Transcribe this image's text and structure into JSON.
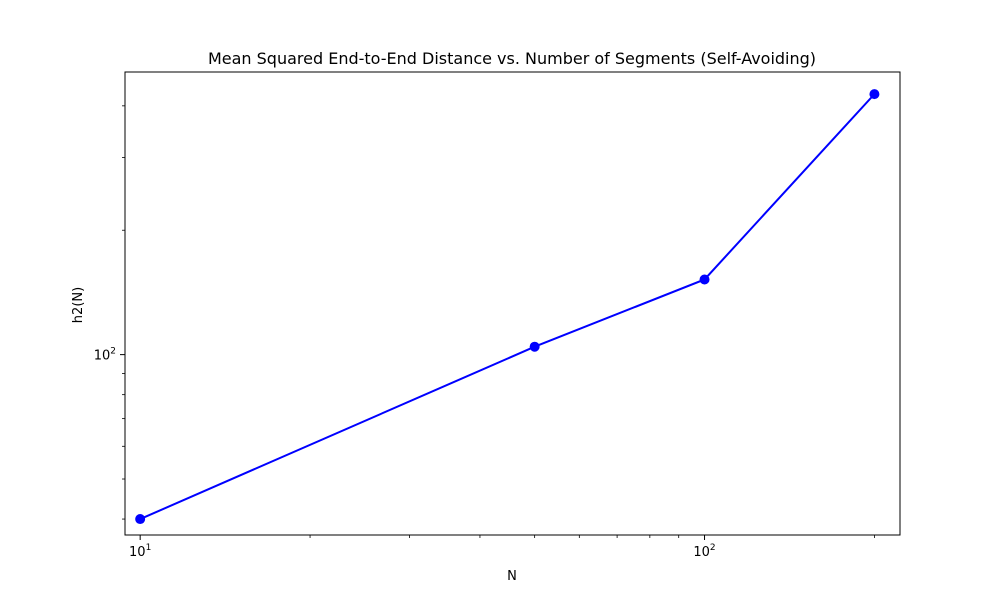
{
  "chart_data": {
    "type": "line",
    "title": "Mean Squared End-to-End Distance vs. Number of Segments (Self-Avoiding)",
    "xlabel": "N",
    "ylabel": "h2(N)",
    "x_scale": "log",
    "y_scale": "log",
    "xlim": [
      9.4,
      222
    ],
    "ylim": [
      36.6,
      483
    ],
    "x_major_ticks": [
      {
        "value": 10,
        "base": "10",
        "exp": "1"
      },
      {
        "value": 100,
        "base": "10",
        "exp": "2"
      }
    ],
    "x_minor_ticks": [
      20,
      30,
      40,
      50,
      60,
      70,
      80,
      90,
      200
    ],
    "y_major_ticks": [
      {
        "value": 100,
        "base": "10",
        "exp": "2"
      }
    ],
    "y_minor_ticks": [
      40,
      50,
      60,
      70,
      80,
      90,
      200,
      300,
      400
    ],
    "grid": false,
    "series": [
      {
        "color": "#0000ff",
        "marker": "circle",
        "x": [
          10,
          50,
          100,
          200
        ],
        "y": [
          40,
          104.5,
          152,
          427
        ]
      }
    ]
  }
}
